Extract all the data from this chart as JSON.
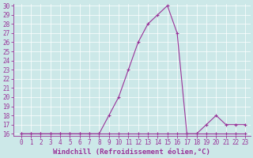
{
  "xlabel": "Windchill (Refroidissement éolien,°C)",
  "x_values": [
    0,
    1,
    2,
    3,
    4,
    5,
    6,
    7,
    8,
    9,
    10,
    11,
    12,
    13,
    14,
    15,
    16,
    17,
    18,
    19,
    20,
    21,
    22,
    23
  ],
  "y_main": [
    16,
    16,
    16,
    16,
    16,
    16,
    16,
    16,
    16,
    18,
    20,
    23,
    26,
    28,
    29,
    30,
    27,
    16,
    16,
    17,
    18,
    17,
    17,
    17
  ],
  "y_flat": [
    16,
    16,
    16,
    16,
    16,
    16,
    16,
    16,
    16,
    16,
    16,
    16,
    16,
    16,
    16,
    16,
    16,
    16,
    16,
    16,
    16,
    16,
    16,
    16
  ],
  "ylim": [
    15.8,
    30.2
  ],
  "xlim": [
    -0.8,
    23.5
  ],
  "yticks": [
    16,
    17,
    18,
    19,
    20,
    21,
    22,
    23,
    24,
    25,
    26,
    27,
    28,
    29,
    30
  ],
  "xticks": [
    0,
    1,
    2,
    3,
    4,
    5,
    6,
    7,
    8,
    9,
    10,
    11,
    12,
    13,
    14,
    15,
    16,
    17,
    18,
    19,
    20,
    21,
    22,
    23
  ],
  "line_color": "#993399",
  "bg_color": "#cce8e8",
  "grid_color": "#ffffff",
  "xlabel_fontsize": 6.5,
  "tick_fontsize": 5.5,
  "marker_size": 2.5,
  "lw": 0.8
}
